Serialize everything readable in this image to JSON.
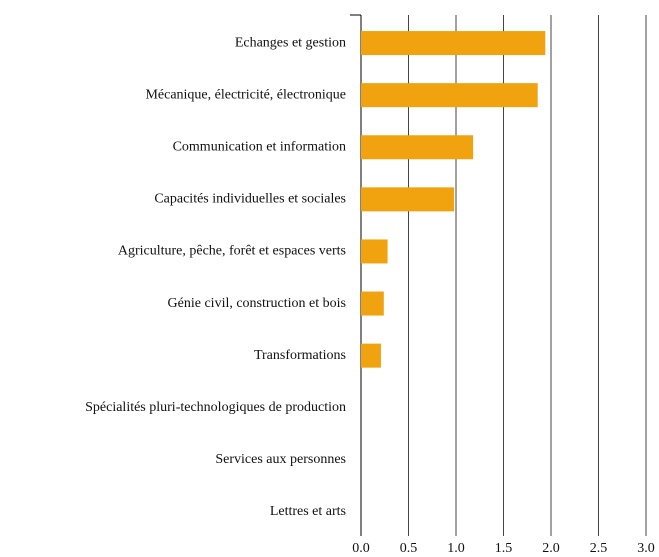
{
  "chart_data": {
    "type": "hbar",
    "categories": [
      "Echanges et gestion",
      "Mécanique, électricité, électronique",
      "Communication et information",
      "Capacités individuelles et sociales",
      "Agriculture, pêche, forêt et espaces verts",
      "Génie civil, construction et bois",
      "Transformations",
      "Spécialités pluri-technologiques de production",
      "Services aux personnes",
      "Lettres et arts"
    ],
    "values": [
      1.94,
      1.86,
      1.18,
      0.98,
      0.28,
      0.24,
      0.21,
      0,
      0,
      0
    ],
    "color": "#f0a30f",
    "xlim": [
      0,
      3
    ],
    "xticks": [
      {
        "value": 0,
        "label": "0.0"
      },
      0.5,
      {
        "value": 1,
        "label": "1.0"
      },
      1.5,
      {
        "value": 2,
        "label": "2.0"
      },
      2.5,
      {
        "value": 3,
        "label": "3.0"
      }
    ],
    "grid": true
  }
}
